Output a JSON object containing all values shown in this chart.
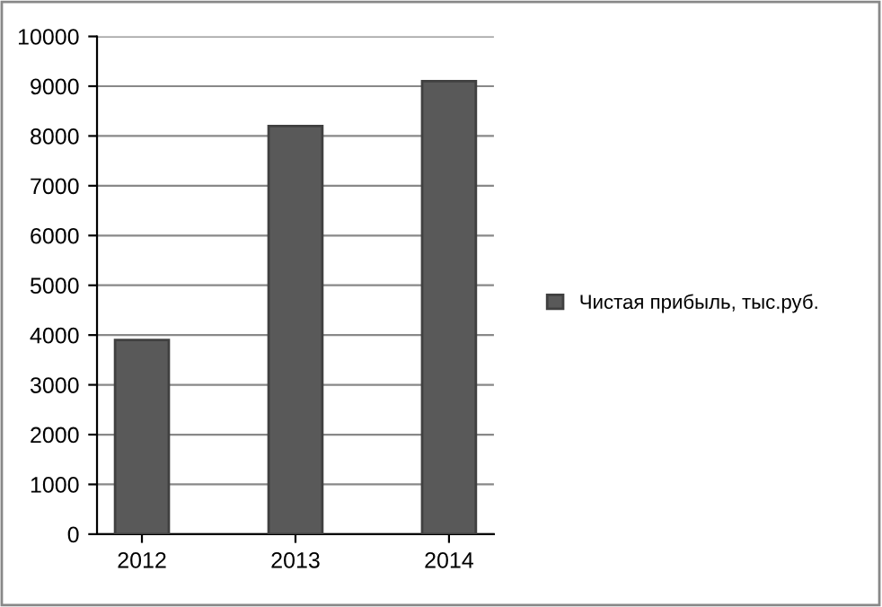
{
  "chart_data": {
    "type": "bar",
    "categories": [
      "2012",
      "2013",
      "2014"
    ],
    "series": [
      {
        "name": "Чистая прибыль, тыс.руб.",
        "color": "#595959",
        "values": [
          3900,
          8200,
          9100
        ]
      }
    ],
    "ylim": [
      0,
      10000
    ],
    "yticks": [
      0,
      1000,
      2000,
      3000,
      4000,
      5000,
      6000,
      7000,
      8000,
      9000,
      10000
    ],
    "grid": "y",
    "legend": "right"
  }
}
